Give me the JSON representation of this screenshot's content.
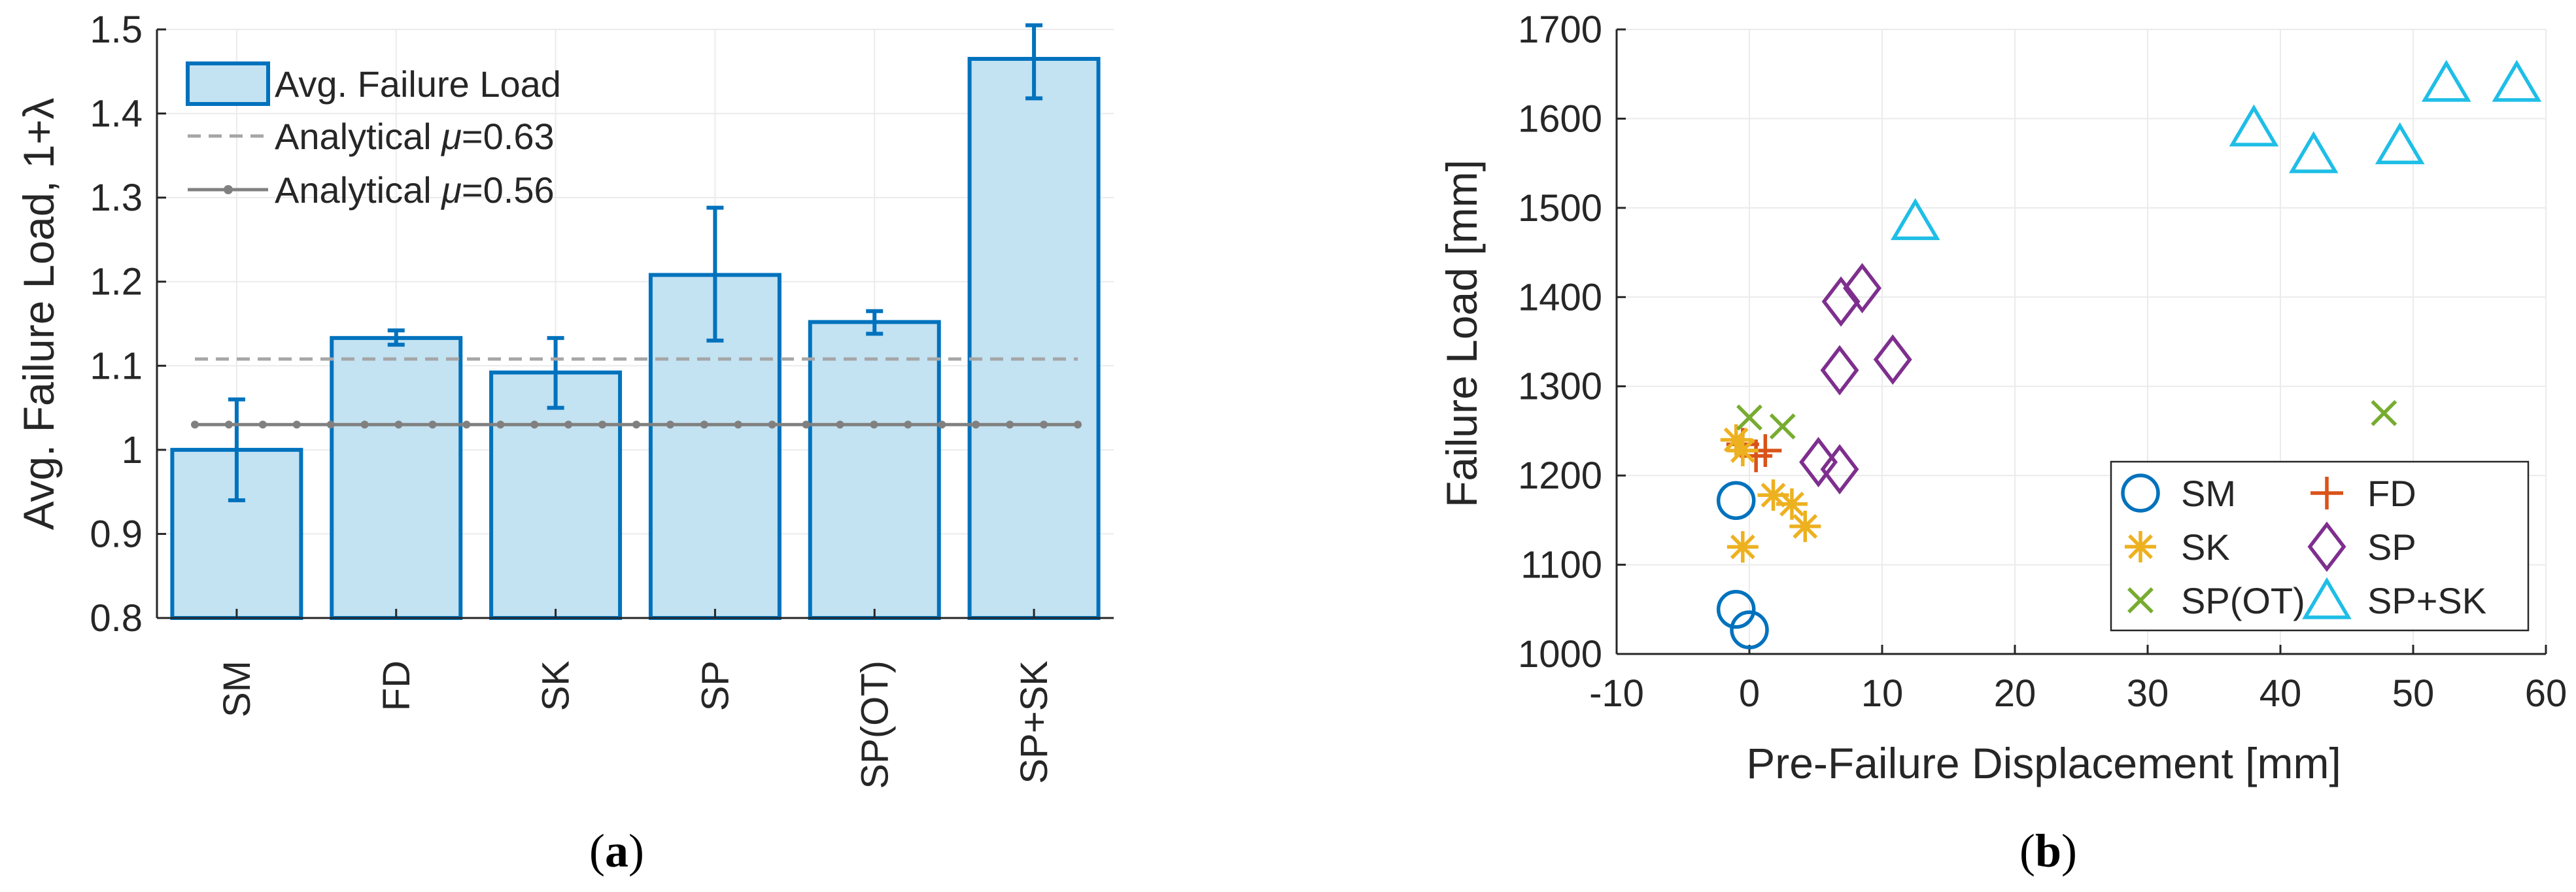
{
  "figure": {
    "caption_a_open": "(",
    "caption_a_letter": "a",
    "caption_a_close": ")",
    "caption_b_open": "(",
    "caption_b_letter": "b",
    "caption_b_close": ")"
  },
  "colors": {
    "bar_fill": "#c3e2f2",
    "bar_edge": "#0072bd",
    "analytical_dashed": "#a6a6a6",
    "analytical_solid": "#808080",
    "axis": "#262626",
    "grid": "#ebebeb",
    "SM": "#0072bd",
    "FD": "#d95319",
    "SK": "#edb120",
    "SP": "#7e2f8e",
    "SP(OT)": "#77ac30",
    "SP+SK": "#1ebee6"
  },
  "chart_data": [
    {
      "id": "a",
      "type": "bar",
      "ylabel": "Avg. Failure Load, 1+λ",
      "xlabel": "",
      "ylim": [
        0.8,
        1.5
      ],
      "yticks": [
        "0.8",
        "0.9",
        "1",
        "1.1",
        "1.2",
        "1.3",
        "1.4",
        "1.5"
      ],
      "grid": true,
      "legend_position": "top-left",
      "categories": [
        "SM",
        "FD",
        "SK",
        "SP",
        "SP(OT)",
        "SP+SK"
      ],
      "series": [
        {
          "name": "Avg. Failure Load",
          "values": [
            1.0,
            1.133,
            1.092,
            1.208,
            1.152,
            1.465
          ],
          "error_low": [
            0.94,
            1.125,
            1.05,
            1.13,
            1.138,
            1.418
          ],
          "error_high": [
            1.06,
            1.142,
            1.133,
            1.288,
            1.165,
            1.505
          ]
        }
      ],
      "reference_lines": [
        {
          "label_prefix": "Analytical ",
          "label_mu": "μ",
          "label_value": "=0.63",
          "y": 1.108,
          "style": "dashed"
        },
        {
          "label_prefix": "Analytical ",
          "label_mu": "μ",
          "label_value": "=0.56",
          "y": 1.03,
          "style": "solid-dotted"
        }
      ]
    },
    {
      "id": "b",
      "type": "scatter",
      "xlabel": "Pre-Failure Displacement [mm]",
      "ylabel": "Failure Load [mm]",
      "xlim": [
        -10,
        60
      ],
      "ylim": [
        1000,
        1700
      ],
      "xticks": [
        "-10",
        "0",
        "10",
        "20",
        "30",
        "40",
        "50",
        "60"
      ],
      "yticks": [
        "1000",
        "1100",
        "1200",
        "1300",
        "1400",
        "1500",
        "1600",
        "1700"
      ],
      "grid": true,
      "legend_position": "bottom-right",
      "series": [
        {
          "name": "SM",
          "marker": "circle",
          "points": [
            [
              -1,
              1172
            ],
            [
              -1,
              1050
            ],
            [
              0,
              1027
            ]
          ]
        },
        {
          "name": "FD",
          "marker": "plus",
          "points": [
            [
              -0.5,
              1235
            ],
            [
              0.5,
              1222
            ],
            [
              1.2,
              1228
            ]
          ]
        },
        {
          "name": "SK",
          "marker": "asterisk",
          "points": [
            [
              -1,
              1240
            ],
            [
              -0.5,
              1228
            ],
            [
              -0.5,
              1120
            ],
            [
              1.8,
              1178
            ],
            [
              3.2,
              1168
            ],
            [
              4.2,
              1143
            ]
          ]
        },
        {
          "name": "SP",
          "marker": "diamond",
          "points": [
            [
              5.2,
              1215
            ],
            [
              6.8,
              1207
            ],
            [
              6.8,
              1318
            ],
            [
              6.9,
              1395
            ],
            [
              8.5,
              1410
            ],
            [
              10.8,
              1330
            ]
          ]
        },
        {
          "name": "SP(OT)",
          "marker": "cross",
          "points": [
            [
              0,
              1265
            ],
            [
              2.5,
              1255
            ],
            [
              47.8,
              1270
            ]
          ]
        },
        {
          "name": "SP+SK",
          "marker": "triangle",
          "points": [
            [
              12.5,
              1485
            ],
            [
              38,
              1590
            ],
            [
              42.5,
              1560
            ],
            [
              49,
              1570
            ],
            [
              52.5,
              1640
            ],
            [
              57.8,
              1640
            ]
          ]
        }
      ]
    }
  ]
}
